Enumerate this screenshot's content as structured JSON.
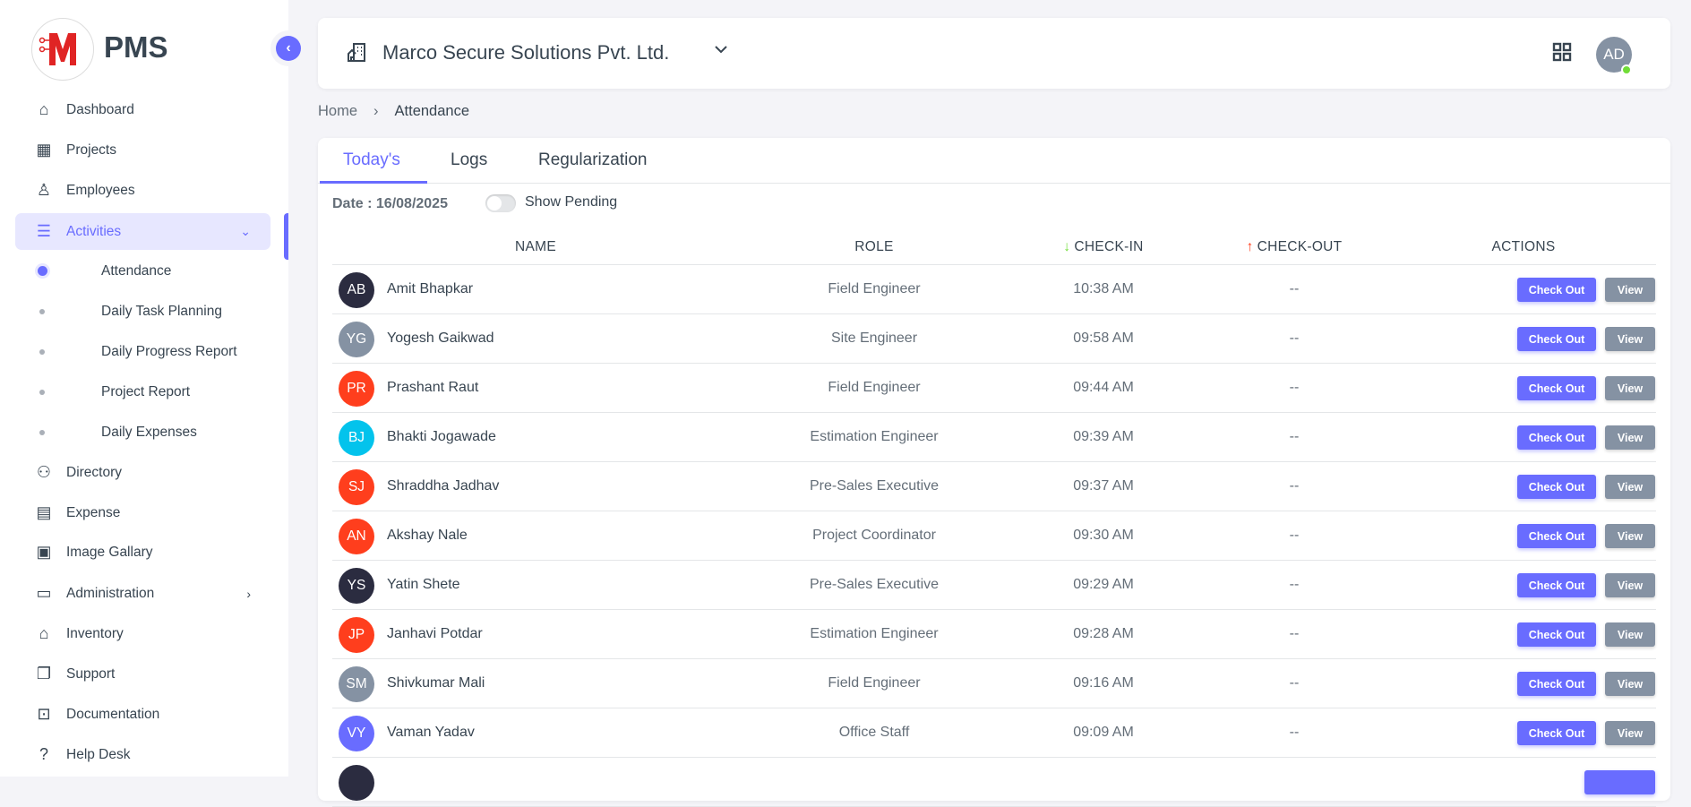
{
  "brand": {
    "name": "PMS",
    "logo_letter": "M"
  },
  "sidebar": {
    "items": [
      {
        "label": "Dashboard",
        "icon": "home-icon"
      },
      {
        "label": "Projects",
        "icon": "building-icon"
      },
      {
        "label": "Employees",
        "icon": "user-icon"
      },
      {
        "label": "Activities",
        "icon": "list-icon",
        "active": true,
        "expanded": true
      },
      {
        "label": "Directory",
        "icon": "users-icon"
      },
      {
        "label": "Expense",
        "icon": "receipt-icon"
      },
      {
        "label": "Image Gallary",
        "icon": "gallery-icon"
      },
      {
        "label": "Administration",
        "icon": "archive-icon",
        "has_submenu": true
      },
      {
        "label": "Inventory",
        "icon": "store-icon"
      },
      {
        "label": "Support",
        "icon": "copy-icon"
      },
      {
        "label": "Documentation",
        "icon": "book-icon"
      },
      {
        "label": "Help Desk",
        "icon": "question-icon"
      }
    ],
    "activities_sub": [
      {
        "label": "Attendance",
        "active": true
      },
      {
        "label": "Daily Task Planning"
      },
      {
        "label": "Daily Progress Report"
      },
      {
        "label": "Project Report"
      },
      {
        "label": "Daily Expenses"
      }
    ]
  },
  "header": {
    "company": "Marco Secure Solutions Pvt. Ltd.",
    "user_initials": "AD",
    "user_status": "online"
  },
  "breadcrumb": [
    "Home",
    "Attendance"
  ],
  "tabs": [
    {
      "label": "Today's",
      "active": true
    },
    {
      "label": "Logs"
    },
    {
      "label": "Regularization"
    }
  ],
  "filters": {
    "date_label": "Date : 16/08/2025",
    "show_pending_label": "Show Pending",
    "show_pending": false
  },
  "table": {
    "headers": {
      "name": "NAME",
      "role": "ROLE",
      "check_in": "CHECK-IN",
      "check_out": "CHECK-OUT",
      "actions": "ACTIONS"
    },
    "check_out_label": "Check Out",
    "view_label": "View",
    "rows": [
      {
        "initials": "AB",
        "color": "#2b2c40",
        "name": "Amit Bhapkar",
        "role": "Field Engineer",
        "check_in": "10:38 AM",
        "check_out": "--"
      },
      {
        "initials": "YG",
        "color": "#8592a3",
        "name": "Yogesh Gaikwad",
        "role": "Site Engineer",
        "check_in": "09:58 AM",
        "check_out": "--"
      },
      {
        "initials": "PR",
        "color": "#ff3e1d",
        "name": "Prashant Raut",
        "role": "Field Engineer",
        "check_in": "09:44 AM",
        "check_out": "--"
      },
      {
        "initials": "BJ",
        "color": "#03c3ec",
        "name": "Bhakti Jogawade",
        "role": "Estimation Engineer",
        "check_in": "09:39 AM",
        "check_out": "--"
      },
      {
        "initials": "SJ",
        "color": "#ff3e1d",
        "name": "Shraddha Jadhav",
        "role": "Pre-Sales Executive",
        "check_in": "09:37 AM",
        "check_out": "--"
      },
      {
        "initials": "AN",
        "color": "#ff3e1d",
        "name": "Akshay Nale",
        "role": "Project Coordinator",
        "check_in": "09:30 AM",
        "check_out": "--"
      },
      {
        "initials": "YS",
        "color": "#2b2c40",
        "name": "Yatin Shete",
        "role": "Pre-Sales Executive",
        "check_in": "09:29 AM",
        "check_out": "--"
      },
      {
        "initials": "JP",
        "color": "#ff3e1d",
        "name": "Janhavi Potdar",
        "role": "Estimation Engineer",
        "check_in": "09:28 AM",
        "check_out": "--"
      },
      {
        "initials": "SM",
        "color": "#8592a3",
        "name": "Shivkumar Mali",
        "role": "Field Engineer",
        "check_in": "09:16 AM",
        "check_out": "--"
      },
      {
        "initials": "VY",
        "color": "#696cff",
        "name": "Vaman Yadav",
        "role": "Office Staff",
        "check_in": "09:09 AM",
        "check_out": "--"
      }
    ]
  },
  "colors": {
    "primary": "#696cff",
    "secondary": "#8592a3",
    "check_in_arrow": "#71dd37",
    "check_out_arrow": "#ff3e1d",
    "online": "#71dd37"
  }
}
